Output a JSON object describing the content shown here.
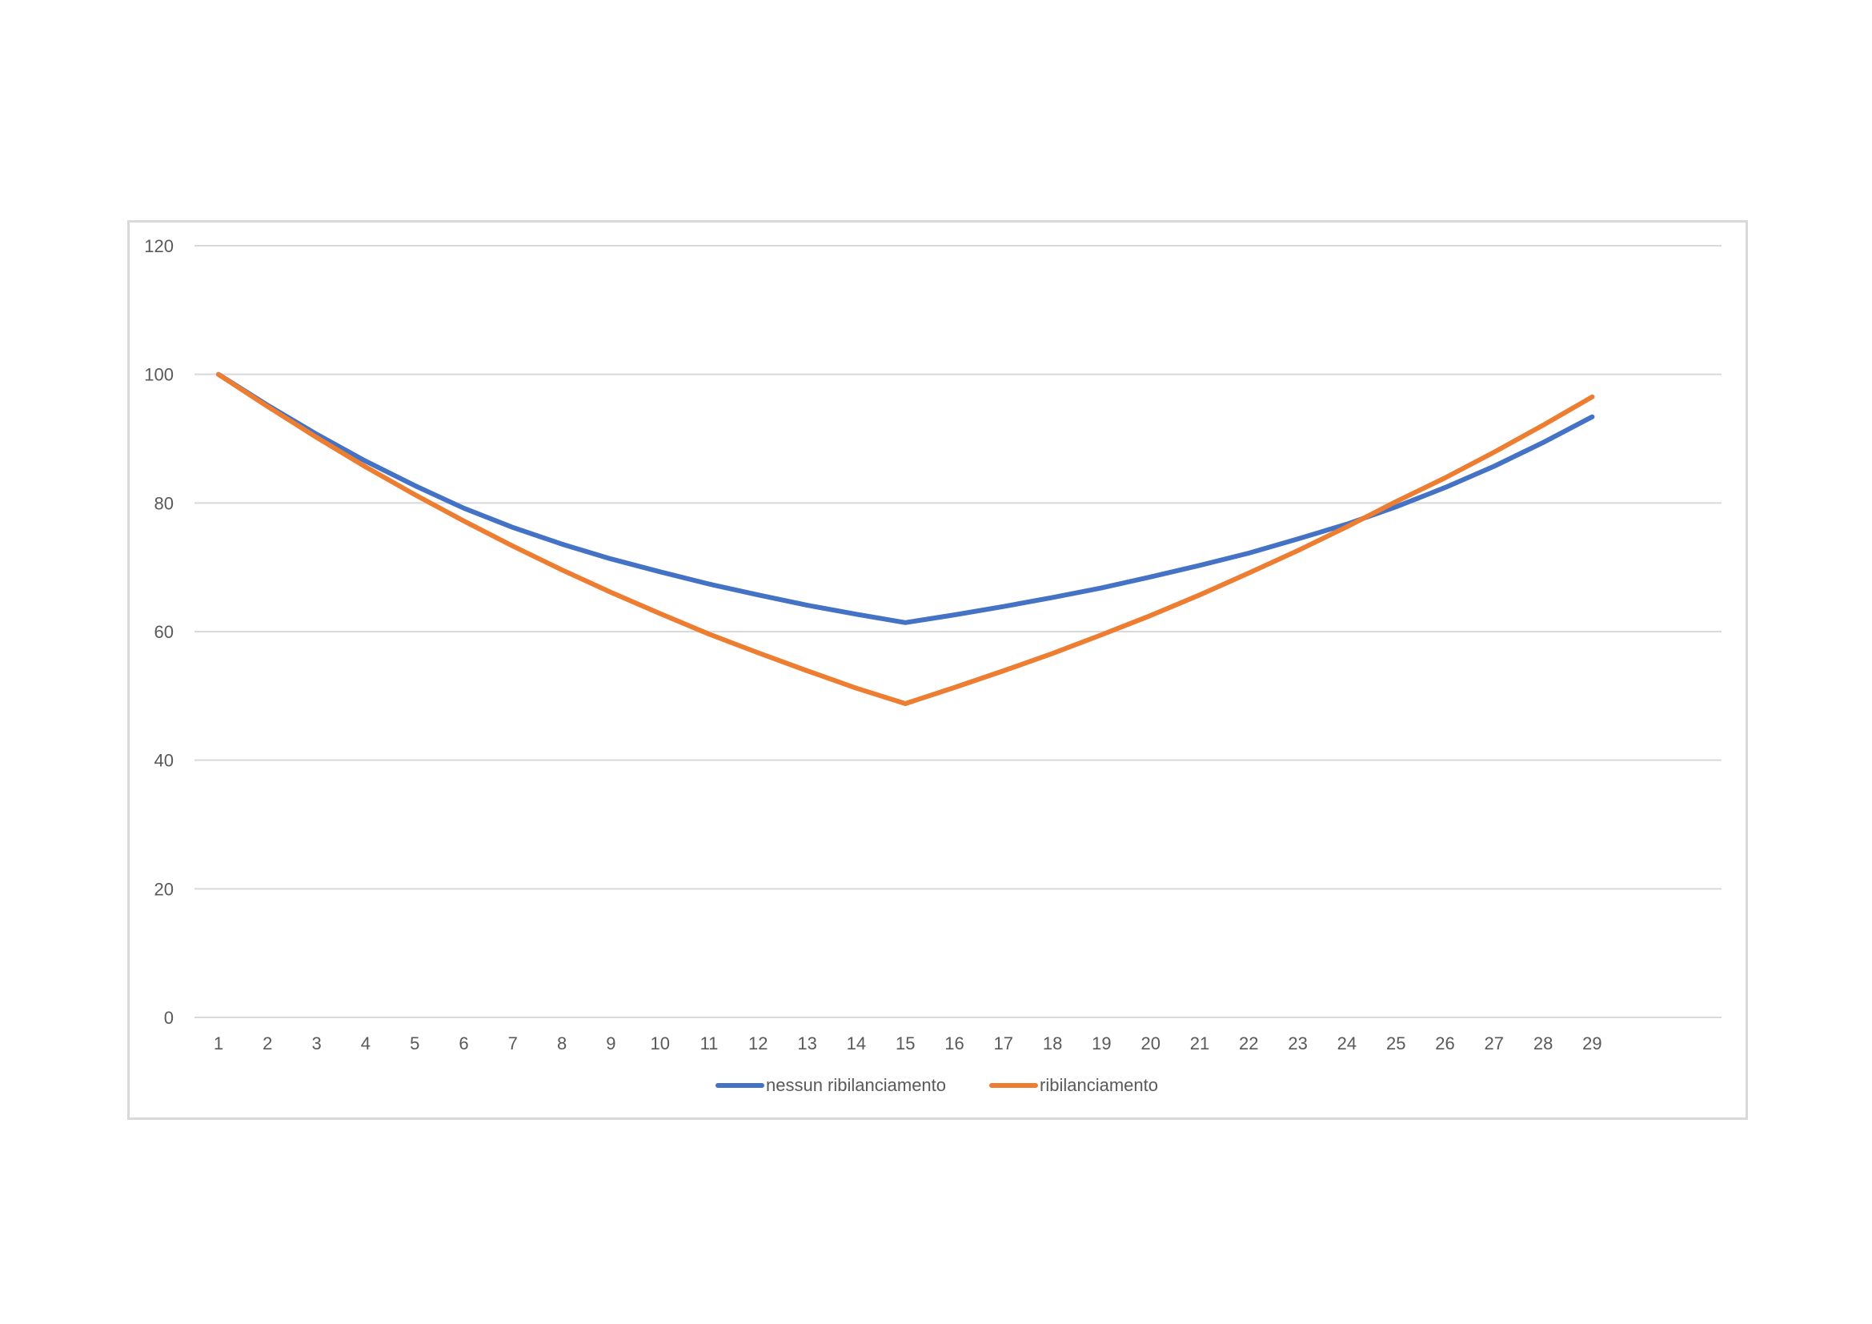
{
  "chart_data": {
    "type": "line",
    "title": "",
    "xlabel": "",
    "ylabel": "",
    "categories": [
      "1",
      "2",
      "3",
      "4",
      "5",
      "6",
      "7",
      "8",
      "9",
      "10",
      "11",
      "12",
      "13",
      "14",
      "15",
      "16",
      "17",
      "18",
      "19",
      "20",
      "21",
      "22",
      "23",
      "24",
      "25",
      "26",
      "27",
      "28",
      "29"
    ],
    "ylim": [
      0,
      120
    ],
    "yticks": [
      "0",
      "20",
      "40",
      "60",
      "80",
      "100",
      "120"
    ],
    "grid": true,
    "legend_position": "bottom",
    "series": [
      {
        "name": "nessun ribilanciamento",
        "color": "#4472C4",
        "values": [
          100,
          95.2,
          90.7,
          86.5,
          82.7,
          79.2,
          76.2,
          73.6,
          71.3,
          69.3,
          67.4,
          65.7,
          64.1,
          62.7,
          61.4,
          62.6,
          63.9,
          65.3,
          66.8,
          68.5,
          70.3,
          72.2,
          74.4,
          76.7,
          79.4,
          82.4,
          85.7,
          89.4,
          93.4
        ]
      },
      {
        "name": "ribilanciamento",
        "color": "#ED7D31",
        "values": [
          100,
          95.0,
          90.2,
          85.6,
          81.3,
          77.2,
          73.3,
          69.6,
          66.1,
          62.8,
          59.6,
          56.7,
          53.9,
          51.2,
          48.8,
          51.3,
          53.9,
          56.6,
          59.5,
          62.5,
          65.7,
          69.1,
          72.6,
          76.3,
          80.2,
          83.9,
          87.9,
          92.1,
          96.5
        ]
      }
    ]
  }
}
